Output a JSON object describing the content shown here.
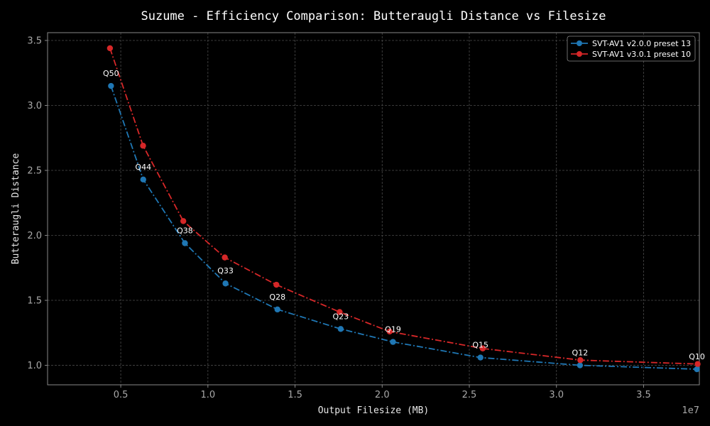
{
  "chart_data": {
    "type": "line",
    "title": "Suzume - Efficiency Comparison: Butteraugli Distance vs Filesize",
    "xlabel": "Output Filesize (MB)",
    "ylabel": "Butteraugli Distance",
    "x_offset_label": "1e7",
    "xlim": [
      800000,
      38200000
    ],
    "ylim": [
      0.85,
      3.56
    ],
    "x_ticks": [
      5000000,
      10000000,
      15000000,
      20000000,
      25000000,
      30000000,
      35000000
    ],
    "x_tick_labels": [
      "0.5",
      "1.0",
      "1.5",
      "2.0",
      "2.5",
      "3.0",
      "3.5"
    ],
    "y_ticks": [
      1.0,
      1.5,
      2.0,
      2.5,
      3.0,
      3.5
    ],
    "y_tick_labels": [
      "1.0",
      "1.5",
      "2.0",
      "2.5",
      "3.0",
      "3.5"
    ],
    "grid": true,
    "legend_position": "top-right",
    "background_color": "#000000",
    "series": [
      {
        "name": "SVT-AV1 v2.0.0 preset 13",
        "color": "#1f77b4",
        "x": [
          4440000,
          6290000,
          8680000,
          11010000,
          13990000,
          17620000,
          20620000,
          25640000,
          31350000,
          38060000
        ],
        "y": [
          3.15,
          2.43,
          1.94,
          1.63,
          1.43,
          1.28,
          1.18,
          1.06,
          1.0,
          0.97
        ]
      },
      {
        "name": "SVT-AV1 v3.0.1 preset 10",
        "color": "#d62728",
        "x": [
          4380000,
          6280000,
          8590000,
          10970000,
          13930000,
          17560000,
          20430000,
          25770000,
          31370000,
          38100000
        ],
        "y": [
          3.44,
          2.69,
          2.11,
          1.83,
          1.62,
          1.41,
          1.26,
          1.13,
          1.04,
          1.01
        ]
      }
    ],
    "annotations": [
      {
        "text": "Q50",
        "x": 4440000,
        "y": 3.15
      },
      {
        "text": "Q44",
        "x": 6290000,
        "y": 2.43
      },
      {
        "text": "Q38",
        "x": 8680000,
        "y": 1.94
      },
      {
        "text": "Q33",
        "x": 11010000,
        "y": 1.63
      },
      {
        "text": "Q28",
        "x": 13990000,
        "y": 1.43
      },
      {
        "text": "Q23",
        "x": 17620000,
        "y": 1.28
      },
      {
        "text": "Q19",
        "x": 20620000,
        "y": 1.18
      },
      {
        "text": "Q15",
        "x": 25640000,
        "y": 1.06
      },
      {
        "text": "Q12",
        "x": 31350000,
        "y": 1.0
      },
      {
        "text": "Q10",
        "x": 38060000,
        "y": 0.97
      }
    ]
  }
}
